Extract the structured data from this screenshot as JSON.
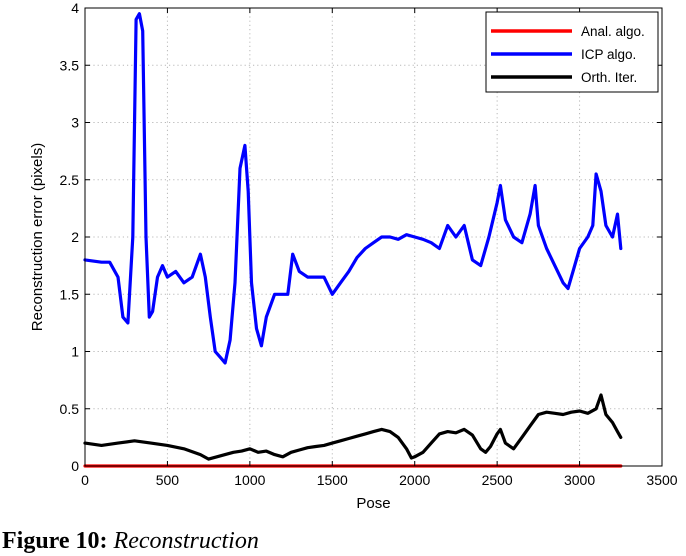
{
  "chart_data": {
    "type": "line",
    "xlabel": "Pose",
    "ylabel": "Reconstruction error (pixels)",
    "xlim": [
      0,
      3500
    ],
    "ylim": [
      0,
      4
    ],
    "xticks": [
      0,
      500,
      1000,
      1500,
      2000,
      2500,
      3000,
      3500
    ],
    "yticks": [
      0,
      0.5,
      1,
      1.5,
      2,
      2.5,
      3,
      3.5,
      4
    ],
    "xtick_labels": [
      "0",
      "500",
      "1000",
      "1500",
      "2000",
      "2500",
      "3000",
      "3500"
    ],
    "ytick_labels": [
      "0",
      "0.5",
      "1",
      "1.5",
      "2",
      "2.5",
      "3",
      "3.5",
      "4"
    ],
    "grid": true,
    "legend_position": "top-right",
    "series": [
      {
        "name": "Anal. algo.",
        "color": "#ff0000",
        "x": [
          0,
          3250
        ],
        "y": [
          0.0,
          0.0
        ]
      },
      {
        "name": "ICP algo.",
        "color": "#0000ff",
        "x": [
          0,
          100,
          150,
          200,
          230,
          260,
          290,
          310,
          330,
          350,
          370,
          390,
          410,
          440,
          470,
          500,
          550,
          600,
          650,
          700,
          730,
          760,
          790,
          820,
          850,
          880,
          910,
          940,
          970,
          990,
          1010,
          1040,
          1070,
          1100,
          1150,
          1200,
          1230,
          1260,
          1300,
          1350,
          1400,
          1450,
          1500,
          1550,
          1600,
          1650,
          1700,
          1750,
          1800,
          1850,
          1900,
          1950,
          2000,
          2050,
          2100,
          2150,
          2200,
          2250,
          2300,
          2350,
          2400,
          2450,
          2500,
          2520,
          2550,
          2600,
          2650,
          2700,
          2730,
          2750,
          2800,
          2850,
          2900,
          2930,
          2960,
          3000,
          3050,
          3080,
          3100,
          3130,
          3160,
          3200,
          3230,
          3250
        ],
        "y": [
          1.8,
          1.78,
          1.78,
          1.65,
          1.3,
          1.25,
          2.0,
          3.9,
          3.95,
          3.8,
          2.0,
          1.3,
          1.35,
          1.65,
          1.75,
          1.65,
          1.7,
          1.6,
          1.65,
          1.85,
          1.65,
          1.3,
          1.0,
          0.95,
          0.9,
          1.1,
          1.6,
          2.6,
          2.8,
          2.4,
          1.6,
          1.2,
          1.05,
          1.3,
          1.5,
          1.5,
          1.5,
          1.85,
          1.7,
          1.65,
          1.65,
          1.65,
          1.5,
          1.6,
          1.7,
          1.82,
          1.9,
          1.95,
          2.0,
          2.0,
          1.98,
          2.02,
          2.0,
          1.98,
          1.95,
          1.9,
          2.1,
          2.0,
          2.1,
          1.8,
          1.75,
          2.0,
          2.3,
          2.45,
          2.15,
          2.0,
          1.95,
          2.2,
          2.45,
          2.1,
          1.9,
          1.75,
          1.6,
          1.55,
          1.7,
          1.9,
          2.0,
          2.1,
          2.55,
          2.4,
          2.1,
          2.0,
          2.2,
          1.9
        ]
      },
      {
        "name": "Orth. Iter.",
        "color": "#000000",
        "x": [
          0,
          100,
          200,
          300,
          400,
          500,
          600,
          700,
          750,
          800,
          850,
          900,
          950,
          1000,
          1050,
          1100,
          1150,
          1200,
          1250,
          1300,
          1350,
          1400,
          1450,
          1500,
          1550,
          1600,
          1650,
          1700,
          1750,
          1800,
          1850,
          1900,
          1950,
          1980,
          2000,
          2050,
          2100,
          2150,
          2200,
          2250,
          2300,
          2350,
          2400,
          2430,
          2460,
          2500,
          2520,
          2550,
          2600,
          2650,
          2700,
          2750,
          2800,
          2850,
          2900,
          2950,
          3000,
          3050,
          3100,
          3130,
          3160,
          3200,
          3230,
          3250
        ],
        "y": [
          0.2,
          0.18,
          0.2,
          0.22,
          0.2,
          0.18,
          0.15,
          0.1,
          0.06,
          0.08,
          0.1,
          0.12,
          0.13,
          0.15,
          0.12,
          0.13,
          0.1,
          0.08,
          0.12,
          0.14,
          0.16,
          0.17,
          0.18,
          0.2,
          0.22,
          0.24,
          0.26,
          0.28,
          0.3,
          0.32,
          0.3,
          0.25,
          0.15,
          0.07,
          0.08,
          0.12,
          0.2,
          0.28,
          0.3,
          0.29,
          0.32,
          0.27,
          0.15,
          0.12,
          0.17,
          0.28,
          0.32,
          0.2,
          0.15,
          0.25,
          0.35,
          0.45,
          0.47,
          0.46,
          0.45,
          0.47,
          0.48,
          0.46,
          0.5,
          0.62,
          0.45,
          0.38,
          0.3,
          0.25
        ]
      }
    ]
  },
  "caption": {
    "figure_number": "Figure 10:",
    "text": "Reconstruction"
  }
}
